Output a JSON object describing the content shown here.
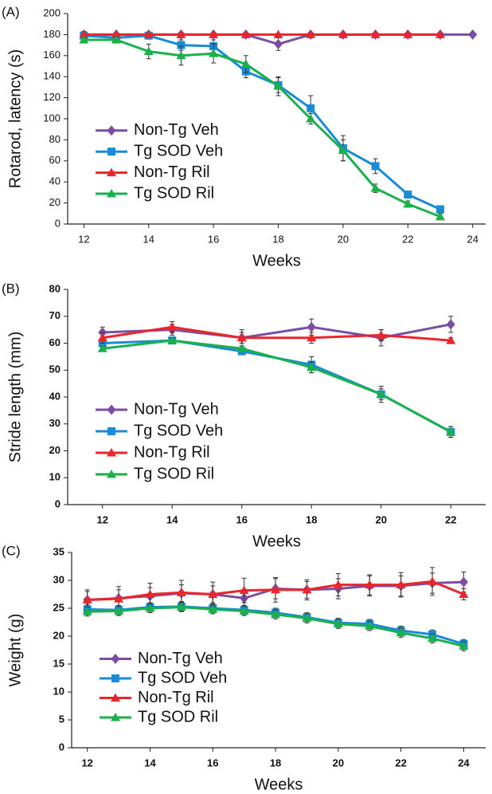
{
  "chart_data": [
    {
      "type": "line",
      "panel_label": "(A)",
      "ylabel": "Rotarod, latency (s)",
      "xlabel": "Weeks",
      "xlim": [
        11.5,
        24.4
      ],
      "ylim": [
        0,
        200
      ],
      "xticks": [
        12,
        14,
        16,
        18,
        20,
        22,
        24
      ],
      "yticks": [
        0,
        20,
        40,
        60,
        80,
        100,
        120,
        140,
        160,
        180,
        200
      ],
      "legend": "lower left",
      "bold_ticks": false,
      "series": [
        {
          "name": "Non-Tg Veh",
          "color": "#7b4ea3",
          "marker": "diamond",
          "x": [
            12,
            13,
            14,
            15,
            16,
            17,
            18,
            19,
            20,
            21,
            22,
            23,
            24
          ],
          "values": [
            180,
            180,
            180,
            180,
            180,
            180,
            171,
            180,
            180,
            180,
            180,
            180,
            180
          ],
          "errors": [
            1,
            1,
            1,
            1,
            1,
            1,
            6,
            1,
            1,
            1,
            1,
            1,
            1
          ]
        },
        {
          "name": "Tg SOD Veh",
          "color": "#1a8bd6",
          "marker": "square",
          "x": [
            12,
            13,
            14,
            15,
            16,
            17,
            18,
            19,
            20,
            21,
            22,
            23
          ],
          "values": [
            179,
            177,
            179,
            170,
            169,
            145,
            132,
            110,
            72,
            55,
            28,
            14
          ],
          "errors": [
            4,
            3,
            3,
            5,
            6,
            6,
            7,
            12,
            12,
            7,
            3,
            3
          ]
        },
        {
          "name": "Non-Tg Ril",
          "color": "#e8262b",
          "marker": "triangle",
          "x": [
            12,
            13,
            14,
            15,
            16,
            17,
            18,
            19,
            20,
            21,
            22,
            23
          ],
          "values": [
            180,
            180,
            180,
            180,
            180,
            180,
            180,
            180,
            180,
            180,
            180,
            180
          ],
          "errors": [
            1,
            1,
            1,
            1,
            1,
            1,
            1,
            1,
            1,
            1,
            1,
            1
          ]
        },
        {
          "name": "Tg SOD Ril",
          "color": "#1ab04b",
          "marker": "triangle",
          "x": [
            12,
            13,
            14,
            15,
            16,
            17,
            18,
            19,
            20,
            21,
            22,
            23
          ],
          "values": [
            175,
            175,
            164,
            160,
            162,
            152,
            131,
            100,
            70,
            34,
            19,
            7
          ],
          "errors": [
            3,
            3,
            7,
            9,
            9,
            8,
            9,
            5,
            10,
            4,
            3,
            3
          ]
        }
      ]
    },
    {
      "type": "line",
      "panel_label": "(B)",
      "ylabel": "Stride length (mm)",
      "xlabel": "Weeks",
      "xlim": [
        11,
        23
      ],
      "ylim": [
        0,
        80
      ],
      "xticks": [
        12,
        14,
        16,
        18,
        20,
        22
      ],
      "yticks": [
        0,
        10,
        20,
        30,
        40,
        50,
        60,
        70,
        80
      ],
      "legend": "lower left",
      "bold_ticks": true,
      "series": [
        {
          "name": "Non-Tg Veh",
          "color": "#7b4ea3",
          "marker": "diamond",
          "x": [
            12,
            14,
            16,
            18,
            20,
            22
          ],
          "values": [
            64,
            65,
            62,
            66,
            62,
            67
          ],
          "errors": [
            2,
            2,
            3,
            3,
            3,
            3
          ]
        },
        {
          "name": "Tg SOD Veh",
          "color": "#1a8bd6",
          "marker": "square",
          "x": [
            12,
            14,
            16,
            18,
            20,
            22
          ],
          "values": [
            60,
            61,
            57,
            52,
            41,
            27
          ],
          "errors": [
            2,
            1,
            1,
            3,
            3,
            2
          ]
        },
        {
          "name": "Non-Tg Ril",
          "color": "#e8262b",
          "marker": "triangle",
          "x": [
            12,
            14,
            16,
            18,
            20,
            22
          ],
          "values": [
            62,
            66,
            62,
            62,
            63,
            61
          ],
          "errors": [
            2,
            2,
            2,
            2,
            2,
            1
          ]
        },
        {
          "name": "Tg SOD Ril",
          "color": "#1ab04b",
          "marker": "triangle",
          "x": [
            12,
            14,
            16,
            18,
            20,
            22
          ],
          "values": [
            58,
            61,
            58,
            51,
            41,
            27
          ],
          "errors": [
            1,
            1,
            1,
            2,
            2,
            2
          ]
        }
      ]
    },
    {
      "type": "line",
      "panel_label": "(C)",
      "ylabel": "Weight (g)",
      "xlabel": "Weeks",
      "xlim": [
        11.5,
        24.7
      ],
      "ylim": [
        0,
        35
      ],
      "xticks": [
        12,
        14,
        16,
        18,
        20,
        22,
        24
      ],
      "yticks": [
        0,
        5,
        10,
        15,
        20,
        25,
        30,
        35
      ],
      "legend": "lower left",
      "bold_ticks": true,
      "series": [
        {
          "name": "Non-Tg Veh",
          "color": "#7b4ea3",
          "marker": "diamond",
          "x": [
            12,
            13,
            14,
            15,
            16,
            17,
            18,
            19,
            20,
            21,
            22,
            23,
            24
          ],
          "values": [
            26.5,
            26.8,
            27.2,
            27.7,
            27.5,
            26.8,
            28.5,
            28.3,
            28.5,
            29,
            29,
            29.5,
            29.7
          ],
          "errors": [
            1.5,
            1.5,
            1.5,
            1.5,
            1.5,
            1.5,
            1.8,
            1.5,
            1.8,
            1.8,
            1.8,
            1.8,
            1.8
          ]
        },
        {
          "name": "Tg SOD Veh",
          "color": "#1a8bd6",
          "marker": "square",
          "x": [
            12,
            13,
            14,
            15,
            16,
            17,
            18,
            19,
            20,
            21,
            22,
            23,
            24
          ],
          "values": [
            24.8,
            24.7,
            25.2,
            25.3,
            25,
            24.7,
            24.2,
            23.4,
            22.4,
            22.2,
            21,
            20.3,
            18.6
          ],
          "errors": [
            0.8,
            0.8,
            0.8,
            0.8,
            0.8,
            0.8,
            0.8,
            0.8,
            0.8,
            0.8,
            0.8,
            0.8,
            0.8
          ]
        },
        {
          "name": "Non-Tg Ril",
          "color": "#e8262b",
          "marker": "triangle",
          "x": [
            12,
            13,
            14,
            15,
            16,
            17,
            18,
            19,
            20,
            21,
            22,
            23,
            24
          ],
          "values": [
            26.5,
            26.7,
            27.5,
            27.8,
            27.5,
            28.2,
            28.3,
            28.3,
            29.2,
            29.2,
            29.2,
            29.8,
            27.5
          ],
          "errors": [
            1.8,
            2.2,
            2,
            2.2,
            2.2,
            2.2,
            2.2,
            1.8,
            2,
            1.8,
            2.2,
            2.5,
            1
          ]
        },
        {
          "name": "Tg SOD Ril",
          "color": "#1ab04b",
          "marker": "triangle",
          "x": [
            12,
            13,
            14,
            15,
            16,
            17,
            18,
            19,
            20,
            21,
            22,
            23,
            24
          ],
          "values": [
            24.4,
            24.5,
            25,
            25.2,
            24.8,
            24.5,
            23.9,
            23.2,
            22.2,
            21.8,
            20.6,
            19.6,
            18.2
          ],
          "errors": [
            0.8,
            0.8,
            0.8,
            0.8,
            0.8,
            0.8,
            0.8,
            0.8,
            0.8,
            0.8,
            0.8,
            0.8,
            0.8
          ]
        }
      ]
    }
  ]
}
